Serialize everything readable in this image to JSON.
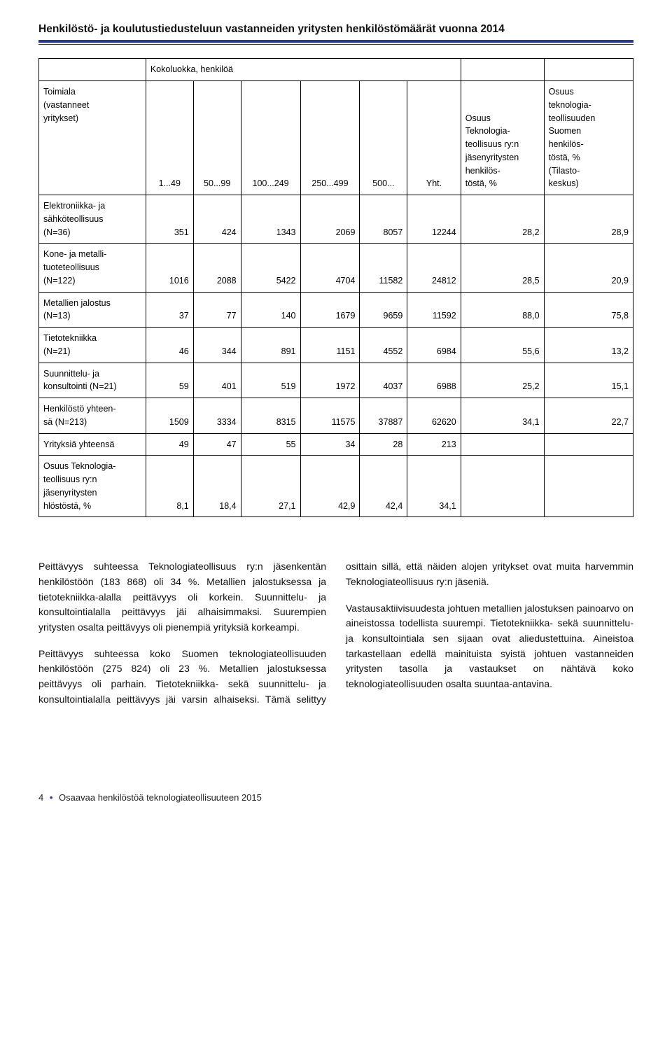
{
  "table": {
    "title": "Henkilöstö- ja koulutustiedusteluun vastanneiden yritysten henkilöstömäärät vuonna 2014",
    "rule": {
      "thick_color": "#2a3a8a",
      "thin_color": "#2a3a8a"
    },
    "col_widths_pct": [
      18,
      8,
      8,
      10,
      10,
      8,
      9,
      14,
      15
    ],
    "header": {
      "top_left": "",
      "sizeclass_span_label": "Kokoluokka, henkilöä",
      "rowlabel": "Toimiala\n(vastanneet\nyritykset)",
      "sizecols": [
        "1...49",
        "50...99",
        "100...249",
        "250...499",
        "500...",
        "Yht."
      ],
      "right1": "Osuus\nTeknologia-\nteollisuus ry:n\njäsenyritysten\nhenkilös-\ntöstä, %",
      "right2": "Osuus\nteknologia-\nteollisuuden\nSuomen\nhenkilös-\ntöstä, %\n(Tilasto-\nkeskus)"
    },
    "rows": [
      {
        "label": "Elektroniikka- ja\nsähköteollisuus\n(N=36)",
        "cells": [
          "351",
          "424",
          "1343",
          "2069",
          "8057",
          "12244",
          "28,2",
          "28,9"
        ]
      },
      {
        "label": "Kone- ja metalli-\ntuoteteollisuus\n(N=122)",
        "cells": [
          "1016",
          "2088",
          "5422",
          "4704",
          "11582",
          "24812",
          "28,5",
          "20,9"
        ]
      },
      {
        "label": "Metallien jalostus\n(N=13)",
        "cells": [
          "37",
          "77",
          "140",
          "1679",
          "9659",
          "11592",
          "88,0",
          "75,8"
        ]
      },
      {
        "label": "Tietotekniikka\n(N=21)",
        "cells": [
          "46",
          "344",
          "891",
          "1151",
          "4552",
          "6984",
          "55,6",
          "13,2"
        ]
      },
      {
        "label": "Suunnittelu- ja\nkonsultointi (N=21)",
        "cells": [
          "59",
          "401",
          "519",
          "1972",
          "4037",
          "6988",
          "25,2",
          "15,1"
        ]
      },
      {
        "label": "Henkilöstö yhteen-\nsä (N=213)",
        "cells": [
          "1509",
          "3334",
          "8315",
          "11575",
          "37887",
          "62620",
          "34,1",
          "22,7"
        ]
      },
      {
        "label": "Yrityksiä yhteensä",
        "cells": [
          "49",
          "47",
          "55",
          "34",
          "28",
          "213",
          "",
          ""
        ]
      },
      {
        "label": "Osuus Teknologia-\nteollisuus ry:n\njäsenyritysten\nhlöstöstä, %",
        "cells": [
          "8,1",
          "18,4",
          "27,1",
          "42,9",
          "42,4",
          "34,1",
          "",
          ""
        ]
      }
    ]
  },
  "paragraphs": [
    "Peittävyys suhteessa Teknologiateollisuus ry:n jäsenkentän henkilöstöön (183 868) oli 34 %. Metallien jalostuksessa ja tietotekniikka-alalla peittävyys oli korkein. Suunnittelu- ja konsultointialalla peittävyys jäi alhaisimmaksi. Suurempien yritysten osalta peittävyys oli pienempiä yrityksiä korkeampi.",
    "Peittävyys suhteessa koko Suomen teknologiateollisuuden henkilöstöön (275 824) oli 23 %. Metallien jalostuksessa peittävyys oli parhain. Tietotekniikka- sekä suunnittelu- ja konsultointialalla peittävyys jäi varsin alhaiseksi. Tämä selittyy osittain sillä, että näiden alojen yritykset ovat muita harvemmin Teknologiateollisuus ry:n jäseniä.",
    "Vastausaktiivisuudesta johtuen metallien jalostuksen painoarvo on aineistossa todellista suurempi. Tietotekniikka- sekä suunnittelu- ja konsultointiala sen sijaan ovat aliedustettuina. Aineistoa tarkastellaan edellä mainituista syistä johtuen vastanneiden yritysten tasolla ja vastaukset on nähtävä koko teknologiateollisuuden osalta suuntaa-antavina."
  ],
  "footer": {
    "page": "4",
    "doc_title": "Osaavaa henkilöstöä teknologiateollisuuteen 2015"
  },
  "colors": {
    "text": "#000000",
    "accent": "#2a3a8a",
    "background": "#ffffff",
    "border": "#000000"
  },
  "typography": {
    "title_fontsize_pt": 12,
    "table_fontsize_pt": 9.5,
    "body_fontsize_pt": 10.5,
    "font_family": "Arial"
  }
}
